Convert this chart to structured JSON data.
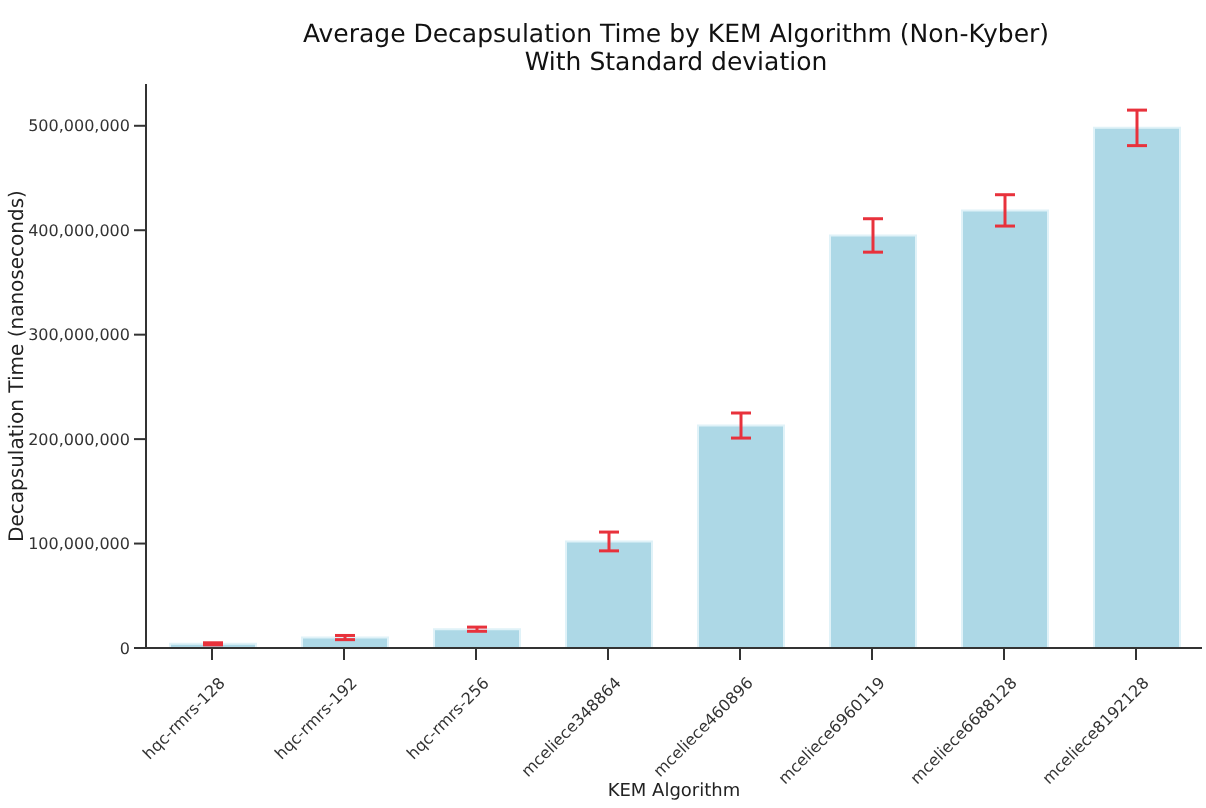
{
  "chart_data": {
    "type": "bar",
    "title": "Average Decapsulation Time by KEM Algorithm (Non-Kyber)",
    "subtitle": "With Standard deviation",
    "xlabel": "KEM Algorithm",
    "ylabel": "Decapsulation Time (nanoseconds)",
    "categories": [
      "hqc-rmrs-128",
      "hqc-rmrs-192",
      "hqc-rmrs-256",
      "mceliece348864",
      "mceliece460896",
      "mceliece6960119",
      "mceliece6688128",
      "mceliece8192128"
    ],
    "values": [
      4000000,
      10000000,
      18000000,
      102000000,
      213000000,
      395000000,
      419000000,
      498000000
    ],
    "errors": [
      1000000,
      2000000,
      2000000,
      9000000,
      12000000,
      16000000,
      15000000,
      17000000
    ],
    "color": "#add8e6",
    "ylim": [
      0,
      540000000
    ],
    "yticks": [
      0,
      {
        "value": 100000000,
        "label": "100,000,000"
      },
      {
        "value": 200000000,
        "label": "200,000,000"
      },
      {
        "value": 300000000,
        "label": "300,000,000"
      },
      {
        "value": 400000000,
        "label": "400,000,000"
      },
      {
        "value": 500000000,
        "label": "500,000,000"
      }
    ],
    "grid": false
  }
}
